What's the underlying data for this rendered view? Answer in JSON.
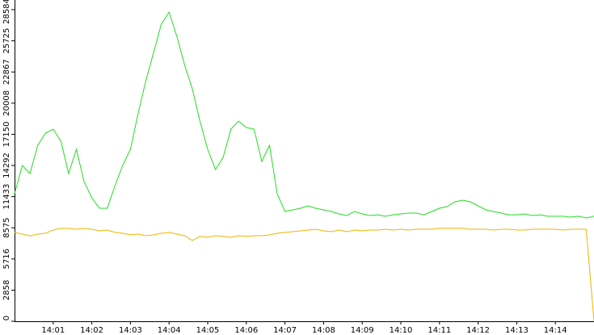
{
  "chart_data": {
    "type": "line",
    "x": [
      840.0,
      840.2,
      840.4,
      840.6,
      840.8,
      841.0,
      841.2,
      841.4,
      841.6,
      841.8,
      842.0,
      842.2,
      842.4,
      842.6,
      842.8,
      843.0,
      843.2,
      843.4,
      843.6,
      843.8,
      844.0,
      844.2,
      844.4,
      844.6,
      844.8,
      845.0,
      845.2,
      845.4,
      845.6,
      845.8,
      846.0,
      846.2,
      846.4,
      846.6,
      846.8,
      847.0,
      847.2,
      847.4,
      847.6,
      847.8,
      848.0,
      848.2,
      848.4,
      848.6,
      848.8,
      849.0,
      849.2,
      849.4,
      849.6,
      849.8,
      850.0,
      850.2,
      850.4,
      850.6,
      850.8,
      851.0,
      851.2,
      851.4,
      851.6,
      851.8,
      852.0,
      852.2,
      852.4,
      852.6,
      852.8,
      853.0,
      853.2,
      853.4,
      853.6,
      853.8,
      854.0,
      854.2,
      854.4,
      854.6,
      854.8,
      855.0
    ],
    "series": [
      {
        "color": "#22dd22",
        "values": [
          11700,
          14290,
          13550,
          16140,
          17250,
          17620,
          16510,
          13550,
          15770,
          12810,
          11330,
          10370,
          10370,
          12440,
          14290,
          15770,
          19100,
          22070,
          24660,
          27250,
          28360,
          26140,
          23550,
          21330,
          18360,
          15770,
          13920,
          15030,
          17620,
          18360,
          17770,
          17620,
          14660,
          16140,
          11700,
          10070,
          10220,
          10370,
          10590,
          10370,
          10220,
          10070,
          9850,
          9700,
          10070,
          9850,
          9700,
          9770,
          9630,
          9770,
          9850,
          9920,
          9920,
          9770,
          10070,
          10370,
          10520,
          10960,
          11110,
          10960,
          10590,
          10220,
          10070,
          9920,
          9770,
          9770,
          9850,
          9700,
          9770,
          9630,
          9630,
          9630,
          9550,
          9630,
          9480,
          9630
        ]
      },
      {
        "color": "#f0b400",
        "values": [
          8150,
          8000,
          7850,
          8000,
          8070,
          8370,
          8520,
          8520,
          8440,
          8520,
          8440,
          8290,
          8370,
          8150,
          8070,
          7920,
          8000,
          7850,
          7920,
          8070,
          8150,
          8000,
          7850,
          7410,
          7780,
          7700,
          7850,
          7780,
          7700,
          7850,
          7780,
          7850,
          7850,
          7920,
          8070,
          8150,
          8220,
          8290,
          8370,
          8440,
          8290,
          8220,
          8370,
          8220,
          8370,
          8290,
          8370,
          8370,
          8440,
          8370,
          8440,
          8370,
          8440,
          8440,
          8440,
          8520,
          8520,
          8520,
          8520,
          8440,
          8440,
          8440,
          8370,
          8440,
          8440,
          8370,
          8370,
          8440,
          8440,
          8440,
          8440,
          8370,
          8440,
          8440,
          8440,
          0
        ]
      }
    ],
    "xlim": [
      840,
      855
    ],
    "xticks": [
      {
        "value": 841,
        "label": "14:01"
      },
      {
        "value": 842,
        "label": "14:02"
      },
      {
        "value": 843,
        "label": "14:03"
      },
      {
        "value": 844,
        "label": "14:04"
      },
      {
        "value": 845,
        "label": "14:05"
      },
      {
        "value": 846,
        "label": "14:06"
      },
      {
        "value": 847,
        "label": "14:07"
      },
      {
        "value": 848,
        "label": "14:08"
      },
      {
        "value": 849,
        "label": "14:09"
      },
      {
        "value": 850,
        "label": "14:10"
      },
      {
        "value": 851,
        "label": "14:11"
      },
      {
        "value": 852,
        "label": "14:12"
      },
      {
        "value": 853,
        "label": "14:13"
      },
      {
        "value": 854,
        "label": "14:14"
      }
    ],
    "ylim": [
      0,
      29470
    ],
    "yticks": [
      0,
      2858,
      5716,
      8575,
      11433,
      14292,
      17150,
      20008,
      22867,
      25725,
      28584
    ]
  }
}
